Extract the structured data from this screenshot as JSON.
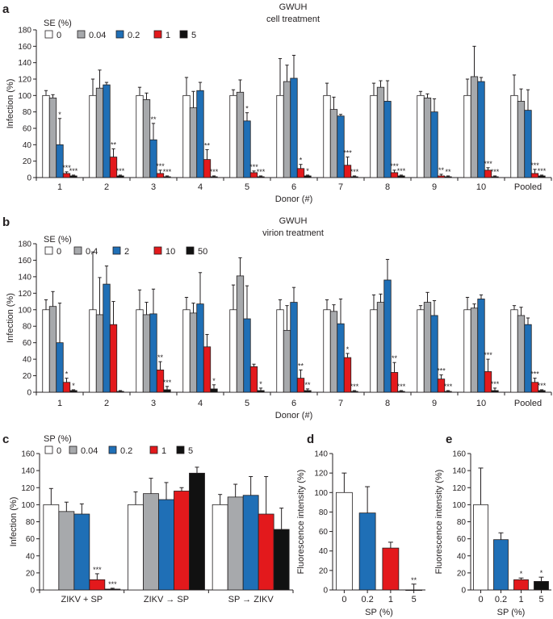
{
  "colors": {
    "white": "#ffffff",
    "gray": "#a7a9ac",
    "blue": "#1f6fb6",
    "red": "#e3191c",
    "black": "#111111",
    "ink": "#231f20"
  },
  "chart_data": [
    {
      "id": "a",
      "panel_letter": "a",
      "type": "bar",
      "title": "GWUH",
      "subtitle": "cell treatment",
      "xlabel": "Donor (#)",
      "ylabel": "Infection (%)",
      "ylim": [
        0,
        180
      ],
      "yticks": [
        0,
        20,
        40,
        60,
        80,
        100,
        120,
        140,
        160,
        180
      ],
      "legend_title": "SE (%)",
      "series_names": [
        "0",
        "0.04",
        "0.2",
        "1",
        "5"
      ],
      "series_colors": [
        "white",
        "gray",
        "blue",
        "red",
        "black"
      ],
      "categories": [
        "1",
        "2",
        "3",
        "4",
        "5",
        "6",
        "7",
        "8",
        "9",
        "10",
        "Pooled"
      ],
      "values": [
        [
          100,
          97,
          40,
          5,
          2
        ],
        [
          100,
          109,
          113,
          25,
          2
        ],
        [
          100,
          95,
          46,
          5,
          1
        ],
        [
          100,
          85,
          106,
          22,
          1
        ],
        [
          100,
          104,
          69,
          6,
          1
        ],
        [
          100,
          117,
          121,
          11,
          2
        ],
        [
          100,
          83,
          75,
          15,
          1
        ],
        [
          100,
          110,
          93,
          6,
          2
        ],
        [
          100,
          97,
          80,
          2,
          1
        ],
        [
          100,
          123,
          117,
          9,
          1
        ],
        [
          100,
          93,
          82,
          5,
          2
        ]
      ],
      "errors": [
        [
          6,
          4,
          32,
          2,
          1
        ],
        [
          20,
          22,
          3,
          10,
          1
        ],
        [
          10,
          8,
          20,
          4,
          1
        ],
        [
          22,
          20,
          10,
          12,
          1
        ],
        [
          7,
          15,
          10,
          2,
          1
        ],
        [
          45,
          20,
          28,
          5,
          1
        ],
        [
          15,
          15,
          2,
          10,
          1
        ],
        [
          15,
          8,
          25,
          3,
          1
        ],
        [
          5,
          5,
          16,
          2,
          1
        ],
        [
          20,
          37,
          5,
          3,
          1
        ],
        [
          25,
          15,
          25,
          5,
          1
        ]
      ],
      "significance": [
        [
          "",
          "",
          "*",
          "***",
          "***"
        ],
        [
          "",
          "",
          "",
          "**",
          "***"
        ],
        [
          "",
          "",
          "**",
          "***",
          "***"
        ],
        [
          "",
          "",
          "",
          "**",
          "***"
        ],
        [
          "",
          "",
          "*",
          "***",
          "***"
        ],
        [
          "",
          "",
          "",
          "*",
          "*"
        ],
        [
          "",
          "",
          "",
          "***",
          "***"
        ],
        [
          "",
          "",
          "",
          "***",
          "***"
        ],
        [
          "",
          "",
          "",
          "**",
          "**"
        ],
        [
          "",
          "",
          "",
          "***",
          "***"
        ],
        [
          "",
          "",
          "",
          "***",
          "***"
        ]
      ]
    },
    {
      "id": "b",
      "panel_letter": "b",
      "type": "bar",
      "title": "GWUH",
      "subtitle": "virion treatment",
      "xlabel": "Donor (#)",
      "ylabel": "Infection (%)",
      "ylim": [
        0,
        180
      ],
      "yticks": [
        0,
        20,
        40,
        60,
        80,
        100,
        120,
        140,
        160,
        180
      ],
      "legend_title": "SE (%)",
      "series_names": [
        "0",
        "0.4",
        "2",
        "10",
        "50"
      ],
      "series_colors": [
        "white",
        "gray",
        "blue",
        "red",
        "black"
      ],
      "categories": [
        "1",
        "2",
        "3",
        "4",
        "5",
        "6",
        "7",
        "8",
        "9",
        "10",
        "Pooled"
      ],
      "values": [
        [
          100,
          104,
          60,
          12,
          2
        ],
        [
          100,
          94,
          131,
          82,
          1
        ],
        [
          100,
          94,
          95,
          27,
          3
        ],
        [
          100,
          96,
          107,
          55,
          4
        ],
        [
          100,
          141,
          89,
          31,
          2
        ],
        [
          100,
          75,
          109,
          17,
          2
        ],
        [
          100,
          98,
          83,
          42,
          1
        ],
        [
          100,
          109,
          136,
          24,
          1
        ],
        [
          100,
          109,
          93,
          16,
          1
        ],
        [
          100,
          102,
          113,
          25,
          2
        ],
        [
          100,
          93,
          82,
          12,
          2
        ]
      ],
      "errors": [
        [
          12,
          18,
          48,
          5,
          1
        ],
        [
          70,
          45,
          22,
          28,
          1
        ],
        [
          24,
          15,
          30,
          10,
          4
        ],
        [
          15,
          12,
          38,
          15,
          5
        ],
        [
          30,
          22,
          40,
          3,
          3
        ],
        [
          12,
          30,
          18,
          10,
          2
        ],
        [
          12,
          8,
          30,
          5,
          1
        ],
        [
          18,
          10,
          25,
          12,
          1
        ],
        [
          5,
          12,
          18,
          5,
          1
        ],
        [
          15,
          5,
          5,
          15,
          3
        ],
        [
          5,
          10,
          8,
          5,
          1
        ]
      ],
      "significance": [
        [
          "",
          "",
          "",
          "*",
          "*"
        ],
        [
          "",
          "",
          "",
          "",
          ""
        ],
        [
          "",
          "",
          "",
          "**",
          "***"
        ],
        [
          "",
          "",
          "",
          "",
          "*"
        ],
        [
          "",
          "",
          "",
          "",
          "*"
        ],
        [
          "",
          "",
          "",
          "**",
          "**"
        ],
        [
          "",
          "",
          "",
          "*",
          "***"
        ],
        [
          "",
          "",
          "",
          "**",
          "***"
        ],
        [
          "",
          "",
          "",
          "***",
          "***"
        ],
        [
          "",
          "",
          "",
          "***",
          "***"
        ],
        [
          "",
          "",
          "",
          "***",
          "***"
        ]
      ]
    },
    {
      "id": "c",
      "panel_letter": "c",
      "type": "bar",
      "title": "",
      "subtitle": "",
      "xlabel": "",
      "ylabel": "Infection (%)",
      "ylim": [
        0,
        160
      ],
      "yticks": [
        0,
        20,
        40,
        60,
        80,
        100,
        120,
        140,
        160
      ],
      "legend_title": "SP (%)",
      "series_names": [
        "0",
        "0.04",
        "0.2",
        "1",
        "5"
      ],
      "series_colors": [
        "white",
        "gray",
        "blue",
        "red",
        "black"
      ],
      "categories": [
        "ZIKV + SP",
        "ZIKV → SP",
        "SP → ZIKV"
      ],
      "values": [
        [
          100,
          92,
          89,
          12,
          1
        ],
        [
          100,
          113,
          106,
          116,
          137
        ],
        [
          100,
          109,
          111,
          89,
          71
        ]
      ],
      "errors": [
        [
          19,
          11,
          12,
          7,
          1
        ],
        [
          15,
          18,
          20,
          4,
          7
        ],
        [
          12,
          15,
          22,
          44,
          25
        ]
      ],
      "significance": [
        [
          "",
          "",
          "",
          "***",
          "***"
        ],
        [
          "",
          "",
          "",
          "",
          ""
        ],
        [
          "",
          "",
          "",
          "",
          ""
        ]
      ]
    },
    {
      "id": "d",
      "panel_letter": "d",
      "type": "bar",
      "title": "",
      "subtitle": "",
      "xlabel": "SP (%)",
      "ylabel": "Fluorescence intensity (%)",
      "ylim": [
        0,
        140
      ],
      "yticks": [
        0,
        20,
        40,
        60,
        80,
        100,
        120,
        140
      ],
      "categories": [
        "0",
        "0.2",
        "1",
        "5"
      ],
      "bar_colors": [
        "white",
        "blue",
        "red",
        "black"
      ],
      "values": [
        100,
        79,
        43,
        0
      ],
      "errors": [
        20,
        27,
        6,
        6
      ],
      "significance": [
        "",
        "",
        "",
        "**"
      ]
    },
    {
      "id": "e",
      "panel_letter": "e",
      "type": "bar",
      "title": "",
      "subtitle": "",
      "xlabel": "SP (%)",
      "ylabel": "Fluorescence intensity (%)",
      "ylim": [
        0,
        160
      ],
      "yticks": [
        0,
        20,
        40,
        60,
        80,
        100,
        120,
        140,
        160
      ],
      "categories": [
        "0",
        "0.2",
        "1",
        "5"
      ],
      "bar_colors": [
        "white",
        "blue",
        "red",
        "black"
      ],
      "values": [
        100,
        59,
        12,
        10
      ],
      "errors": [
        43,
        8,
        2,
        5
      ],
      "significance": [
        "",
        "",
        "*",
        "*"
      ]
    }
  ]
}
